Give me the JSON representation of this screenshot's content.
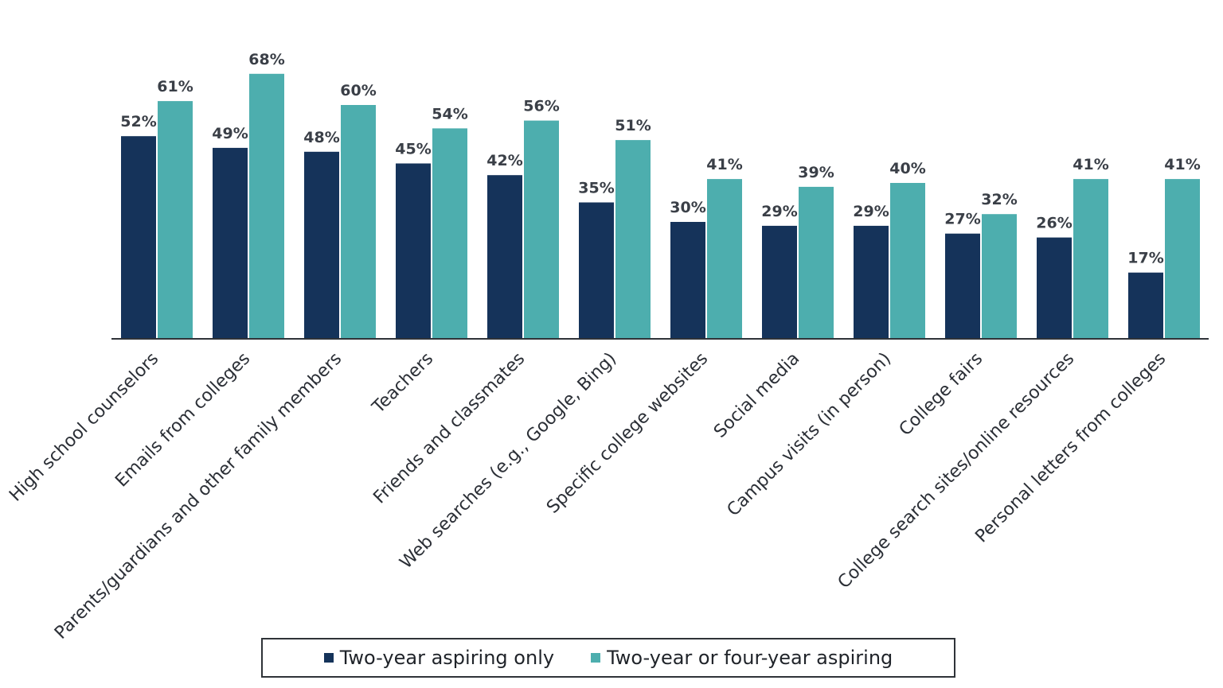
{
  "chart_data": {
    "type": "bar",
    "title": "",
    "xlabel": "",
    "ylabel": "",
    "ylim": [
      0,
      70
    ],
    "grid": false,
    "legend_position": "bottom-center",
    "categories": [
      "High school counselors",
      "Emails from colleges",
      "Parents/guardians and other family members",
      "Teachers",
      "Friends and classmates",
      "Web searches (e.g., Google, Bing)",
      "Specific college websites",
      "Social media",
      "Campus visits (in person)",
      "College fairs",
      "College search sites/online resources",
      "Personal letters from colleges"
    ],
    "series": [
      {
        "name": "Two-year aspiring only",
        "color": "#15335a",
        "values": [
          52,
          49,
          48,
          45,
          42,
          35,
          30,
          29,
          29,
          27,
          26,
          17
        ],
        "labels": [
          "52%",
          "49%",
          "48%",
          "45%",
          "42%",
          "35%",
          "30%",
          "29%",
          "29%",
          "27%",
          "26%",
          "17%"
        ]
      },
      {
        "name": "Two-year or four-year aspiring",
        "color": "#4daeae",
        "values": [
          61,
          68,
          60,
          54,
          56,
          51,
          41,
          39,
          40,
          32,
          41,
          41
        ],
        "labels": [
          "61%",
          "68%",
          "60%",
          "54%",
          "56%",
          "51%",
          "41%",
          "39%",
          "40%",
          "32%",
          "41%",
          "41%"
        ]
      }
    ]
  },
  "legend": {
    "items": [
      {
        "label": "Two-year aspiring only",
        "color": "#15335a"
      },
      {
        "label": "Two-year or four-year aspiring",
        "color": "#4daeae"
      }
    ]
  }
}
